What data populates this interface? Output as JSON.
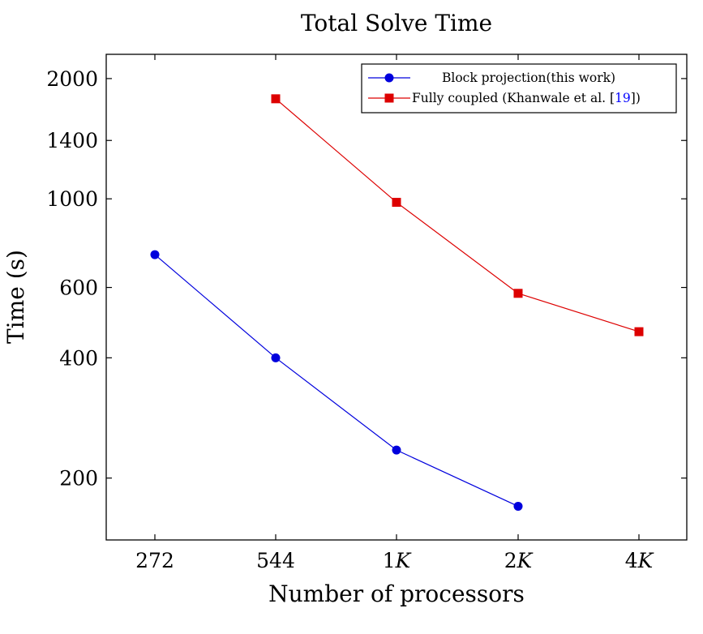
{
  "chart_data": {
    "type": "line",
    "title": "Total Solve Time",
    "xlabel": "Number of processors",
    "ylabel": "Time (s)",
    "yscale": "log",
    "ylim": [
      140,
      2300
    ],
    "grid": false,
    "legend_position": "top-right",
    "x": [
      "272",
      "544",
      "1K",
      "2K",
      "4K"
    ],
    "x_tick_labels": [
      {
        "num": "272",
        "suffix": ""
      },
      {
        "num": "544",
        "suffix": ""
      },
      {
        "num": "1",
        "suffix": "K"
      },
      {
        "num": "2",
        "suffix": "K"
      },
      {
        "num": "4",
        "suffix": "K"
      }
    ],
    "y_ticks": [
      200,
      400,
      600,
      1000,
      1400,
      2000
    ],
    "y_tick_labels": [
      "200",
      "400",
      "600",
      "1000",
      "1400",
      "2000"
    ],
    "series": [
      {
        "name": "Block projection(this work)",
        "color": "#0000dd",
        "marker": "circle",
        "values": [
          725,
          400,
          235,
          170,
          null
        ]
      },
      {
        "name_prefix": "Fully coupled (Khanwale et al. [",
        "name_ref": "19",
        "name_suffix": "])",
        "color": "#dd0000",
        "ref_color": "#0000ff",
        "marker": "square",
        "values": [
          null,
          1780,
          980,
          580,
          465
        ]
      }
    ]
  }
}
